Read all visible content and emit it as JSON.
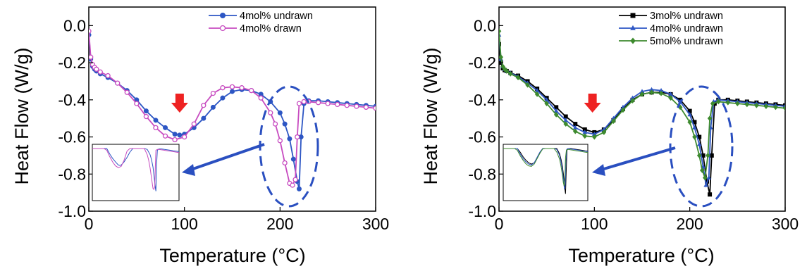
{
  "colors": {
    "blue": "#2D56C4",
    "magenta": "#C74BC0",
    "black": "#000000",
    "green": "#3D8A2E",
    "arrow_red": "#EE2222",
    "ellipse_blue": "#2A4FC0"
  },
  "chart_data": [
    {
      "type": "line",
      "xlabel": "Temperature (°C)",
      "ylabel": "Heat Flow (W/g)",
      "xlim": [
        0,
        300
      ],
      "ylim": [
        -1.0,
        0.1
      ],
      "xticks": [
        "0",
        "100",
        "200",
        "300"
      ],
      "yticks": [
        "-1.0",
        "-0.8",
        "-0.6",
        "-0.4",
        "-0.2",
        "0.0"
      ],
      "legend_position": "top-right",
      "annotation_arrow_x": 95,
      "inset": true,
      "series": [
        {
          "name": "4mol% undrawn",
          "color": "#2D56C4",
          "marker": "circle-filled",
          "x": [
            0,
            2,
            4,
            6,
            8,
            12,
            20,
            30,
            40,
            50,
            60,
            70,
            80,
            90,
            95,
            100,
            110,
            120,
            130,
            140,
            150,
            160,
            170,
            180,
            190,
            200,
            205,
            210,
            214,
            218,
            220,
            222,
            225,
            230,
            240,
            250,
            260,
            270,
            280,
            290,
            300
          ],
          "values": [
            -0.05,
            -0.18,
            -0.22,
            -0.235,
            -0.245,
            -0.26,
            -0.28,
            -0.31,
            -0.35,
            -0.4,
            -0.46,
            -0.51,
            -0.55,
            -0.585,
            -0.59,
            -0.585,
            -0.55,
            -0.5,
            -0.44,
            -0.39,
            -0.355,
            -0.345,
            -0.35,
            -0.37,
            -0.41,
            -0.47,
            -0.53,
            -0.61,
            -0.72,
            -0.84,
            -0.88,
            -0.6,
            -0.42,
            -0.405,
            -0.405,
            -0.41,
            -0.415,
            -0.42,
            -0.425,
            -0.43,
            -0.435
          ]
        },
        {
          "name": "4mol% drawn",
          "color": "#C74BC0",
          "marker": "circle-open",
          "x": [
            0,
            2,
            4,
            6,
            8,
            12,
            20,
            30,
            40,
            50,
            60,
            70,
            80,
            90,
            100,
            110,
            120,
            130,
            140,
            150,
            160,
            170,
            180,
            190,
            195,
            200,
            205,
            210,
            213,
            216,
            218,
            220,
            225,
            230,
            240,
            250,
            260,
            270,
            280,
            290,
            300
          ],
          "values": [
            -0.03,
            -0.17,
            -0.21,
            -0.225,
            -0.235,
            -0.25,
            -0.27,
            -0.31,
            -0.36,
            -0.42,
            -0.49,
            -0.55,
            -0.595,
            -0.615,
            -0.6,
            -0.53,
            -0.43,
            -0.365,
            -0.335,
            -0.33,
            -0.335,
            -0.35,
            -0.39,
            -0.47,
            -0.53,
            -0.62,
            -0.74,
            -0.85,
            -0.86,
            -0.83,
            -0.6,
            -0.42,
            -0.41,
            -0.41,
            -0.415,
            -0.42,
            -0.425,
            -0.43,
            -0.435,
            -0.44,
            -0.445
          ]
        }
      ]
    },
    {
      "type": "line",
      "xlabel": "Temperature (°C)",
      "ylabel": "Heat Flow (W/g)",
      "xlim": [
        0,
        300
      ],
      "ylim": [
        -1.0,
        0.1
      ],
      "xticks": [
        "0",
        "100",
        "200",
        "300"
      ],
      "yticks": [
        "-1.0",
        "-0.8",
        "-0.6",
        "-0.4",
        "-0.2",
        "0.0"
      ],
      "legend_position": "top-right",
      "annotation_arrow_x": 98,
      "inset": true,
      "series": [
        {
          "name": "3mol% undrawn",
          "color": "#000000",
          "marker": "square-filled",
          "x": [
            0,
            2,
            4,
            6,
            8,
            12,
            20,
            30,
            40,
            50,
            60,
            70,
            80,
            90,
            100,
            110,
            120,
            130,
            140,
            150,
            160,
            170,
            180,
            190,
            200,
            205,
            210,
            214,
            218,
            221,
            223,
            226,
            230,
            240,
            250,
            260,
            270,
            280,
            290,
            300
          ],
          "values": [
            -0.1,
            -0.2,
            -0.23,
            -0.24,
            -0.245,
            -0.255,
            -0.27,
            -0.3,
            -0.34,
            -0.39,
            -0.44,
            -0.49,
            -0.53,
            -0.56,
            -0.575,
            -0.56,
            -0.51,
            -0.45,
            -0.4,
            -0.37,
            -0.36,
            -0.36,
            -0.37,
            -0.4,
            -0.46,
            -0.52,
            -0.6,
            -0.7,
            -0.84,
            -0.91,
            -0.7,
            -0.42,
            -0.4,
            -0.4,
            -0.405,
            -0.41,
            -0.415,
            -0.42,
            -0.425,
            -0.43
          ]
        },
        {
          "name": "4mol% undrawn",
          "color": "#2D56C4",
          "marker": "triangle-filled",
          "x": [
            0,
            2,
            4,
            6,
            8,
            12,
            20,
            30,
            40,
            50,
            60,
            70,
            80,
            90,
            100,
            110,
            120,
            130,
            140,
            150,
            160,
            170,
            180,
            190,
            200,
            205,
            210,
            214,
            217,
            220,
            222,
            225,
            230,
            240,
            250,
            260,
            270,
            280,
            290,
            300
          ],
          "values": [
            -0.05,
            -0.18,
            -0.22,
            -0.235,
            -0.245,
            -0.255,
            -0.275,
            -0.31,
            -0.35,
            -0.4,
            -0.46,
            -0.51,
            -0.55,
            -0.575,
            -0.585,
            -0.56,
            -0.5,
            -0.44,
            -0.39,
            -0.355,
            -0.345,
            -0.35,
            -0.37,
            -0.41,
            -0.48,
            -0.55,
            -0.64,
            -0.76,
            -0.86,
            -0.82,
            -0.55,
            -0.41,
            -0.4,
            -0.405,
            -0.41,
            -0.415,
            -0.42,
            -0.425,
            -0.43,
            -0.435
          ]
        },
        {
          "name": "5mol% undrawn",
          "color": "#3D8A2E",
          "marker": "diamond-filled",
          "x": [
            0,
            2,
            4,
            6,
            8,
            12,
            20,
            30,
            40,
            50,
            60,
            70,
            80,
            90,
            100,
            110,
            120,
            130,
            140,
            150,
            160,
            170,
            180,
            190,
            200,
            205,
            210,
            213,
            216,
            219,
            221,
            224,
            230,
            240,
            250,
            260,
            270,
            280,
            290,
            300
          ],
          "values": [
            -0.03,
            -0.17,
            -0.22,
            -0.235,
            -0.245,
            -0.26,
            -0.28,
            -0.32,
            -0.37,
            -0.42,
            -0.48,
            -0.53,
            -0.57,
            -0.595,
            -0.6,
            -0.575,
            -0.515,
            -0.455,
            -0.405,
            -0.37,
            -0.36,
            -0.365,
            -0.39,
            -0.44,
            -0.52,
            -0.6,
            -0.7,
            -0.78,
            -0.82,
            -0.7,
            -0.5,
            -0.42,
            -0.41,
            -0.415,
            -0.42,
            -0.425,
            -0.43,
            -0.435,
            -0.44,
            -0.445
          ]
        }
      ]
    }
  ]
}
